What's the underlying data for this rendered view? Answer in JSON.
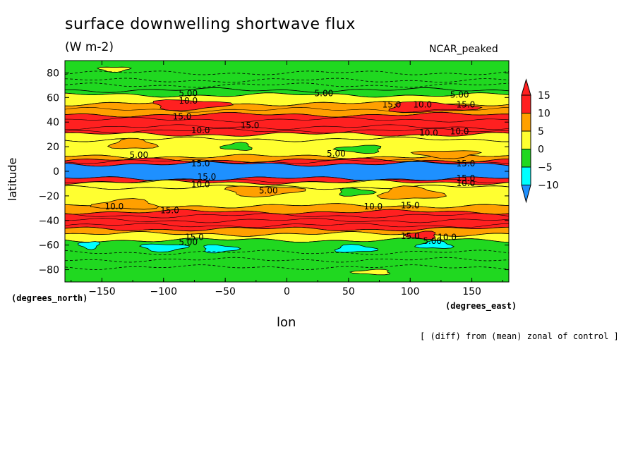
{
  "chart_data": {
    "type": "heatmap",
    "title": "surface downwelling shortwave flux",
    "units": "(W m-2)",
    "model_label": "NCAR_peaked",
    "xlabel": "lon",
    "xunits": "(degrees_east)",
    "ylabel": "latitude",
    "yunits": "(degrees_north)",
    "note": "[ (diff) from (mean) zonal of control ]",
    "xlim": [
      -180,
      180
    ],
    "ylim": [
      -90,
      90
    ],
    "x_ticks": [
      "-150",
      "-100",
      "-50",
      "0",
      "50",
      "100",
      "150"
    ],
    "y_ticks": [
      "80",
      "60",
      "40",
      "20",
      "0",
      "-20",
      "-40",
      "-60",
      "-80"
    ],
    "colorbar": {
      "levels": [
        "15",
        "10",
        "5",
        "0",
        "-5",
        "-10"
      ],
      "colors": {
        "above_15": "#ff2020",
        "10_15": "#ff2020",
        "5_10": "#ffa000",
        "0_5": "#ffff30",
        "m5_0": "#20d820",
        "m10_m5": "#00ffff",
        "below_m10": "#1e90ff"
      }
    },
    "bands": [
      {
        "lat_from": 90,
        "lat_to": 66,
        "value": -5
      },
      {
        "lat_from": 66,
        "lat_to": 62,
        "value": -2
      },
      {
        "lat_from": 62,
        "lat_to": 55,
        "value": 2
      },
      {
        "lat_from": 55,
        "lat_to": 46,
        "value": 8
      },
      {
        "lat_from": 46,
        "lat_to": 30,
        "value": 15
      },
      {
        "lat_from": 30,
        "lat_to": 26,
        "value": 3
      },
      {
        "lat_from": 26,
        "lat_to": 12,
        "value": 2
      },
      {
        "lat_from": 12,
        "lat_to": 9,
        "value": 8
      },
      {
        "lat_from": 9,
        "lat_to": 6,
        "value": 15
      },
      {
        "lat_from": 6,
        "lat_to": -6,
        "value": -15
      },
      {
        "lat_from": -6,
        "lat_to": -9,
        "value": 15
      },
      {
        "lat_from": -9,
        "lat_to": -13,
        "value": 3
      },
      {
        "lat_from": -13,
        "lat_to": -28,
        "value": 2
      },
      {
        "lat_from": -28,
        "lat_to": -33,
        "value": 8
      },
      {
        "lat_from": -33,
        "lat_to": -47,
        "value": 15
      },
      {
        "lat_from": -47,
        "lat_to": -51,
        "value": 8
      },
      {
        "lat_from": -51,
        "lat_to": -56,
        "value": 2
      },
      {
        "lat_from": -56,
        "lat_to": -90,
        "value": -5
      }
    ],
    "patches": [
      {
        "lon": -140,
        "lat": 83,
        "rlon": 12,
        "rlat": 2,
        "value": 2
      },
      {
        "lon": -80,
        "lat": 54,
        "rlon": 30,
        "rlat": 4,
        "value": 14
      },
      {
        "lon": 115,
        "lat": 52,
        "rlon": 35,
        "rlat": 4,
        "value": 14
      },
      {
        "lon": -125,
        "lat": 22,
        "rlon": 18,
        "rlat": 4,
        "value": 7
      },
      {
        "lon": -40,
        "lat": 20,
        "rlon": 12,
        "rlat": 3,
        "value": -3
      },
      {
        "lon": 60,
        "lat": 18,
        "rlon": 18,
        "rlat": 3,
        "value": -3
      },
      {
        "lon": 130,
        "lat": 14,
        "rlon": 25,
        "rlat": 3,
        "value": 7
      },
      {
        "lon": -20,
        "lat": -16,
        "rlon": 30,
        "rlat": 4,
        "value": 7
      },
      {
        "lon": 55,
        "lat": -17,
        "rlon": 14,
        "rlat": 3,
        "value": -3
      },
      {
        "lon": 100,
        "lat": -18,
        "rlon": 25,
        "rlat": 5,
        "value": 7
      },
      {
        "lon": -130,
        "lat": -27,
        "rlon": 25,
        "rlat": 4,
        "value": 7
      },
      {
        "lon": 110,
        "lat": -52,
        "rlon": 12,
        "rlat": 3,
        "value": 14
      },
      {
        "lon": -160,
        "lat": -60,
        "rlon": 8,
        "rlat": 3,
        "value": -7
      },
      {
        "lon": -100,
        "lat": -62,
        "rlon": 18,
        "rlat": 3,
        "value": -7
      },
      {
        "lon": -55,
        "lat": -63,
        "rlon": 14,
        "rlat": 3,
        "value": -7
      },
      {
        "lon": 55,
        "lat": -63,
        "rlon": 16,
        "rlat": 3,
        "value": -7
      },
      {
        "lon": 120,
        "lat": -60,
        "rlon": 14,
        "rlat": 3,
        "value": -7
      },
      {
        "lon": 70,
        "lat": -82,
        "rlon": 15,
        "rlat": 2,
        "value": 2
      }
    ],
    "contour_labels": [
      {
        "lon": -80,
        "lat": 63,
        "text": "5.00"
      },
      {
        "lon": 30,
        "lat": 63,
        "text": "5.00"
      },
      {
        "lon": 140,
        "lat": 62,
        "text": "5.00"
      },
      {
        "lon": -80,
        "lat": 57,
        "text": "10.0"
      },
      {
        "lon": 85,
        "lat": 54,
        "text": "15.0"
      },
      {
        "lon": 110,
        "lat": 54,
        "text": "10.0"
      },
      {
        "lon": 145,
        "lat": 54,
        "text": "15.0"
      },
      {
        "lon": -85,
        "lat": 44,
        "text": "15.0"
      },
      {
        "lon": -30,
        "lat": 37,
        "text": "15.0"
      },
      {
        "lon": -70,
        "lat": 33,
        "text": "10.0"
      },
      {
        "lon": 115,
        "lat": 31,
        "text": "10.0"
      },
      {
        "lon": 140,
        "lat": 32,
        "text": "10.0"
      },
      {
        "lon": -120,
        "lat": 13,
        "text": "5.00"
      },
      {
        "lon": 40,
        "lat": 14,
        "text": "5.00"
      },
      {
        "lon": -70,
        "lat": 6,
        "text": "15.0"
      },
      {
        "lon": 145,
        "lat": 6,
        "text": "15.0"
      },
      {
        "lon": -65,
        "lat": -5,
        "text": "15.0"
      },
      {
        "lon": 145,
        "lat": -6,
        "text": "15.0"
      },
      {
        "lon": -70,
        "lat": -11,
        "text": "10.0"
      },
      {
        "lon": -15,
        "lat": -16,
        "text": "5.00"
      },
      {
        "lon": 145,
        "lat": -10,
        "text": "10.0"
      },
      {
        "lon": -140,
        "lat": -29,
        "text": "10.0"
      },
      {
        "lon": 70,
        "lat": -29,
        "text": "10.0"
      },
      {
        "lon": 100,
        "lat": -28,
        "text": "15.0"
      },
      {
        "lon": -95,
        "lat": -32,
        "text": "15.0"
      },
      {
        "lon": -75,
        "lat": -54,
        "text": "15.0"
      },
      {
        "lon": -80,
        "lat": -58,
        "text": "5.00"
      },
      {
        "lon": 100,
        "lat": -53,
        "text": "15.0"
      },
      {
        "lon": 130,
        "lat": -54,
        "text": "10.0"
      },
      {
        "lon": 118,
        "lat": -57,
        "text": "5.00"
      }
    ]
  }
}
